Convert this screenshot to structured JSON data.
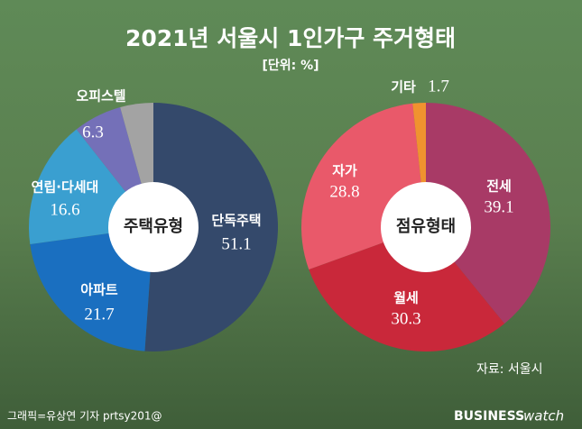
{
  "title": "2021년 서울시 1인가구 주거형태",
  "subtitle": "[단위: %]",
  "source": "자료: 서울시",
  "credit": "그래픽=유상연 기자 prtsy201@",
  "brand": {
    "bold": "BUSINESS",
    "light": "watch"
  },
  "chart_data": [
    {
      "type": "donut",
      "title": "주택유형",
      "categories": [
        "단독주택",
        "아파트",
        "연립·다세대",
        "오피스텔",
        null
      ],
      "values": [
        51.1,
        21.7,
        16.6,
        6.3,
        4.3
      ],
      "colors": [
        "#34496b",
        "#1a6fc0",
        "#3a9fd0",
        "#7470b8",
        "#a3a3a3"
      ]
    },
    {
      "type": "donut",
      "title": "점유형태",
      "categories": [
        "전세",
        "월세",
        "자가",
        "기타"
      ],
      "values": [
        39.1,
        30.3,
        28.8,
        1.7
      ],
      "colors": [
        "#a83a66",
        "#c9283a",
        "#e9596a",
        "#f0922f"
      ]
    }
  ]
}
